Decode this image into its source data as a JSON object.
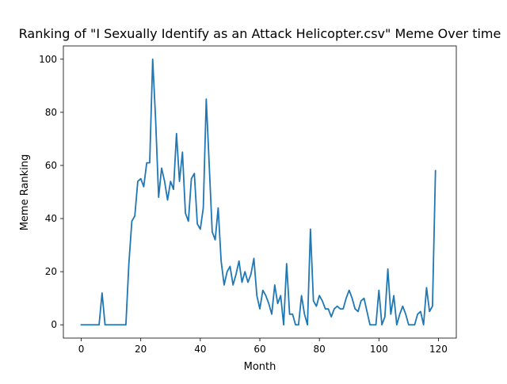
{
  "chart_data": {
    "type": "line",
    "title": "Ranking of \"I Sexually Identify as an Attack Helicopter.csv\" Meme Over time",
    "xlabel": "Month",
    "ylabel": "Meme Ranking",
    "xlim": [
      -6,
      126
    ],
    "ylim": [
      -5,
      105
    ],
    "xticks": [
      0,
      20,
      40,
      60,
      80,
      100,
      120
    ],
    "yticks": [
      0,
      20,
      40,
      60,
      80,
      100
    ],
    "grid": false,
    "legend": "none",
    "line_color": "#1f77b4",
    "series": [
      {
        "x": [
          0,
          1,
          2,
          3,
          4,
          5,
          6,
          7,
          8,
          9,
          10,
          11,
          12,
          13,
          14,
          15,
          16,
          17,
          18,
          19,
          20,
          21,
          22,
          23,
          24,
          25,
          26,
          27,
          28,
          29,
          30,
          31,
          32,
          33,
          34,
          35,
          36,
          37,
          38,
          39,
          40,
          41,
          42,
          43,
          44,
          45,
          46,
          47,
          48,
          49,
          50,
          51,
          52,
          53,
          54,
          55,
          56,
          57,
          58,
          59,
          60,
          61,
          62,
          63,
          64,
          65,
          66,
          67,
          68,
          69,
          70,
          71,
          72,
          73,
          74,
          75,
          76,
          77,
          78,
          79,
          80,
          81,
          82,
          83,
          84,
          85,
          86,
          87,
          88,
          89,
          90,
          91,
          92,
          93,
          94,
          95,
          96,
          97,
          98,
          99,
          100,
          101,
          102,
          103,
          104,
          105,
          106,
          107,
          108,
          109,
          110,
          111,
          112,
          113,
          114,
          115,
          116,
          117,
          118,
          119
        ],
        "values": [
          0,
          0,
          0,
          0,
          0,
          0,
          0,
          12,
          0,
          0,
          0,
          0,
          0,
          0,
          0,
          0,
          23,
          39,
          41,
          54,
          55,
          52,
          61,
          61,
          100,
          77,
          48,
          59,
          54,
          47,
          54,
          51,
          72,
          54,
          65,
          42,
          39,
          55,
          57,
          38,
          36,
          44,
          85,
          60,
          35,
          32,
          44,
          24,
          15,
          20,
          22,
          15,
          19,
          24,
          16,
          20,
          16,
          19,
          25,
          11,
          6,
          13,
          11,
          8,
          4,
          15,
          8,
          11,
          0,
          23,
          4,
          4,
          0,
          0,
          11,
          4,
          0,
          36,
          9,
          7,
          11,
          9,
          6,
          6,
          3,
          6,
          7,
          6,
          6,
          10,
          13,
          10,
          6,
          5,
          9,
          10,
          5,
          0,
          0,
          0,
          13,
          0,
          3,
          21,
          4,
          11,
          0,
          4,
          7,
          4,
          0,
          0,
          0,
          4,
          5,
          0,
          14,
          5,
          7,
          58
        ]
      }
    ]
  }
}
